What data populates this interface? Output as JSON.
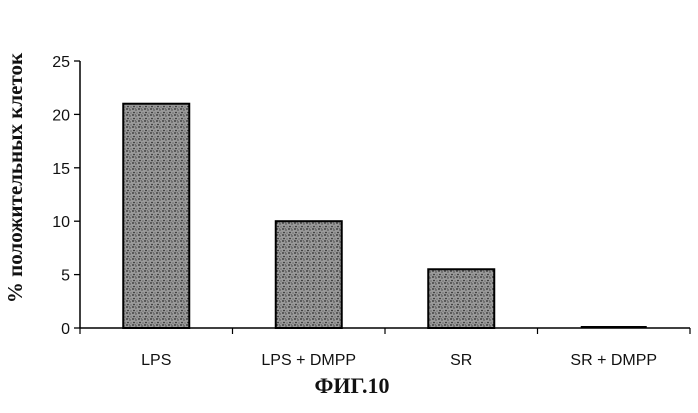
{
  "chart_data": {
    "type": "bar",
    "categories": [
      "LPS",
      "LPS + DMPP",
      "SR",
      "SR + DMPP"
    ],
    "values": [
      21,
      10,
      5.5,
      0
    ],
    "ylabel": "% положительных клеток",
    "xlabel": "",
    "ylim": [
      0,
      25
    ],
    "yticks": [
      0,
      5,
      10,
      15,
      20,
      25
    ],
    "grid": false,
    "legend": "none",
    "bar_fill": "stippled gray",
    "colors": {
      "bar_base": "#9a9a9a",
      "stipple": "#2a2a2a",
      "edge": "#000000"
    }
  },
  "caption": "ФИГ.10"
}
